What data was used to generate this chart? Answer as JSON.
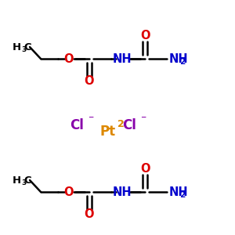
{
  "background_color": "#ffffff",
  "figsize": [
    3.0,
    3.0
  ],
  "dpi": 100,
  "black": "#000000",
  "red": "#dd0000",
  "blue": "#0000cc",
  "purple": "#8800aa",
  "orange": "#dd8800",
  "lw": 1.8,
  "mol1_y": 75,
  "mol2_y": 245,
  "ion_y": 160,
  "mol_x0": 18,
  "xlim": [
    0,
    300
  ],
  "ylim": [
    300,
    0
  ]
}
